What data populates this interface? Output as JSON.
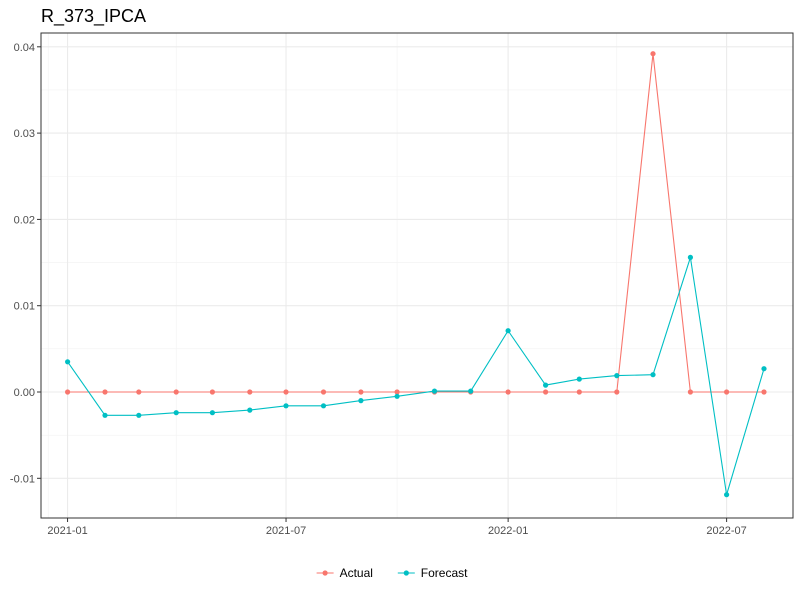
{
  "chart_data": {
    "type": "line",
    "title": "R_373_IPCA",
    "xlabel": "",
    "ylabel": "",
    "x": [
      "2021-01",
      "2021-02",
      "2021-03",
      "2021-04",
      "2021-05",
      "2021-06",
      "2021-07",
      "2021-08",
      "2021-09",
      "2021-10",
      "2021-11",
      "2021-12",
      "2022-01",
      "2022-02",
      "2022-03",
      "2022-04",
      "2022-05",
      "2022-06",
      "2022-07",
      "2022-08"
    ],
    "x_ticks": [
      "2021-01",
      "2021-07",
      "2022-01",
      "2022-07"
    ],
    "y_ticks": [
      -0.01,
      0.0,
      0.01,
      0.02,
      0.03,
      0.04
    ],
    "y_tick_labels": [
      "-0.01",
      "0.00",
      "0.01",
      "0.02",
      "0.03",
      "0.04"
    ],
    "ylim": [
      -0.0146,
      0.0416
    ],
    "xlim": [
      "2020-12-10",
      "2022-08-25"
    ],
    "grid": true,
    "legend_position": "bottom",
    "series": [
      {
        "name": "Actual",
        "color": "#F8766D",
        "values": [
          0,
          0,
          0,
          0,
          0,
          0,
          0,
          0,
          0,
          0,
          0,
          0,
          0,
          0,
          0,
          0,
          0.0392,
          0,
          0,
          0
        ]
      },
      {
        "name": "Forecast",
        "color": "#00BFC4",
        "values": [
          0.0035,
          -0.0027,
          -0.0027,
          -0.0024,
          -0.0024,
          -0.0021,
          -0.0016,
          -0.0016,
          -0.001,
          -0.0005,
          0.0001,
          0.0001,
          0.0071,
          0.0008,
          0.0015,
          0.0019,
          0.002,
          0.0156,
          -0.0119,
          0.0027
        ]
      }
    ]
  }
}
